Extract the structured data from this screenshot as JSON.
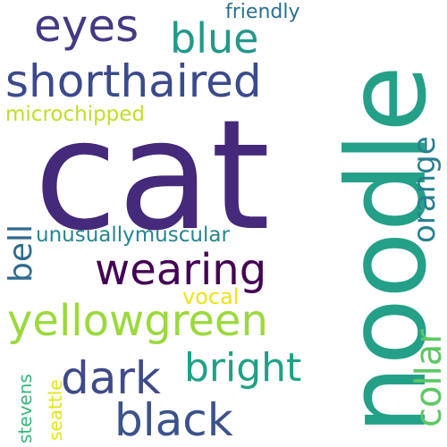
{
  "words": [
    {
      "text": "cat",
      "color": "#45297a"
    },
    {
      "text": "noodle",
      "color": "#24a088"
    },
    {
      "text": "shorthaired",
      "color": "#3a4a8c"
    },
    {
      "text": "eyes",
      "color": "#443a83"
    },
    {
      "text": "blue",
      "color": "#21998a"
    },
    {
      "text": "friendly",
      "color": "#2c6f8e"
    },
    {
      "text": "microchipped",
      "color": "#c0df25"
    },
    {
      "text": "orange",
      "color": "#27808e"
    },
    {
      "text": "wearing",
      "color": "#440154"
    },
    {
      "text": "bell",
      "color": "#2f6b8e"
    },
    {
      "text": "unusuallymuscular",
      "color": "#26858e"
    },
    {
      "text": "yellowgreen",
      "color": "#9bd93c"
    },
    {
      "text": "collar",
      "color": "#5cc863"
    },
    {
      "text": "dark",
      "color": "#3e4a89"
    },
    {
      "text": "bright",
      "color": "#1fa188"
    },
    {
      "text": "vocal",
      "color": "#f0e21c"
    },
    {
      "text": "black",
      "color": "#3b528b"
    },
    {
      "text": "stevens",
      "color": "#35b779"
    },
    {
      "text": "seattle",
      "color": "#e2e418"
    }
  ]
}
